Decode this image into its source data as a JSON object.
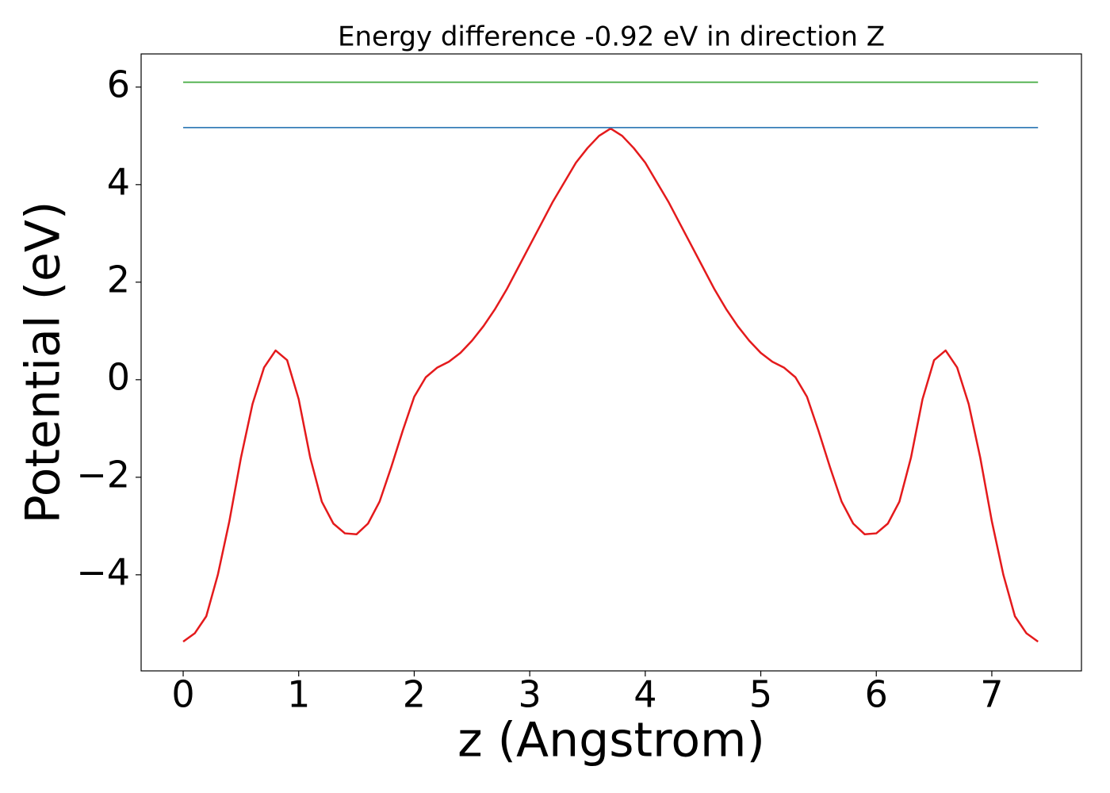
{
  "chart_data": {
    "type": "line",
    "title": "Energy difference -0.92 eV in direction Z",
    "x_label": "z (Angstrom)",
    "y_label": "Potential (eV)",
    "xlim": [
      -0.364,
      7.776
    ],
    "ylim": [
      -5.97,
      6.68
    ],
    "xticks": [
      0,
      1,
      2,
      3,
      4,
      5,
      6,
      7
    ],
    "yticks": [
      {
        "value": -4,
        "label": "−4"
      },
      {
        "value": -2,
        "label": "−2"
      },
      0,
      2,
      4,
      6
    ],
    "grid": false,
    "series": [
      {
        "color": "#e41a1c",
        "x": [
          0,
          0.1,
          0.2,
          0.3,
          0.4,
          0.5,
          0.6,
          0.7,
          0.8,
          0.9,
          1.0,
          1.1,
          1.2,
          1.3,
          1.4,
          1.5,
          1.6,
          1.7,
          1.8,
          1.9,
          2.0,
          2.1,
          2.2,
          2.3,
          2.4,
          2.5,
          2.6,
          2.7,
          2.8,
          2.9,
          3.0,
          3.1,
          3.2,
          3.3,
          3.4,
          3.5,
          3.6,
          3.7,
          3.8,
          3.9,
          4.0,
          4.1,
          4.2,
          4.3,
          4.4,
          4.5,
          4.6,
          4.7,
          4.8,
          4.9,
          5.0,
          5.1,
          5.2,
          5.3,
          5.4,
          5.5,
          5.6,
          5.7,
          5.8,
          5.9,
          6.0,
          6.1,
          6.2,
          6.3,
          6.4,
          6.5,
          6.6,
          6.7,
          6.8,
          6.9,
          7.0,
          7.1,
          7.2,
          7.3,
          7.4
        ],
        "values": [
          -5.37,
          -5.2,
          -4.85,
          -4.0,
          -2.9,
          -1.6,
          -0.5,
          0.25,
          0.6,
          0.4,
          -0.4,
          -1.6,
          -2.5,
          -2.95,
          -3.15,
          -3.17,
          -2.95,
          -2.5,
          -1.8,
          -1.05,
          -0.35,
          0.05,
          0.25,
          0.37,
          0.55,
          0.8,
          1.1,
          1.45,
          1.85,
          2.3,
          2.75,
          3.2,
          3.65,
          4.05,
          4.45,
          4.75,
          5.0,
          5.15,
          5.0,
          4.75,
          4.45,
          4.05,
          3.65,
          3.2,
          2.75,
          2.3,
          1.85,
          1.45,
          1.1,
          0.8,
          0.55,
          0.37,
          0.25,
          0.05,
          -0.35,
          -1.05,
          -1.8,
          -2.5,
          -2.95,
          -3.17,
          -3.15,
          -2.95,
          -2.5,
          -1.6,
          -0.4,
          0.4,
          0.6,
          0.25,
          -0.5,
          -1.6,
          -2.9,
          -4.0,
          -4.85,
          -5.2,
          -5.37
        ]
      },
      {
        "color": "#377eb8",
        "x": [
          0,
          7.4
        ],
        "values": [
          5.17,
          5.17
        ]
      },
      {
        "color": "#4daf4a",
        "x": [
          0,
          7.4
        ],
        "values": [
          6.1,
          6.1
        ]
      }
    ]
  }
}
